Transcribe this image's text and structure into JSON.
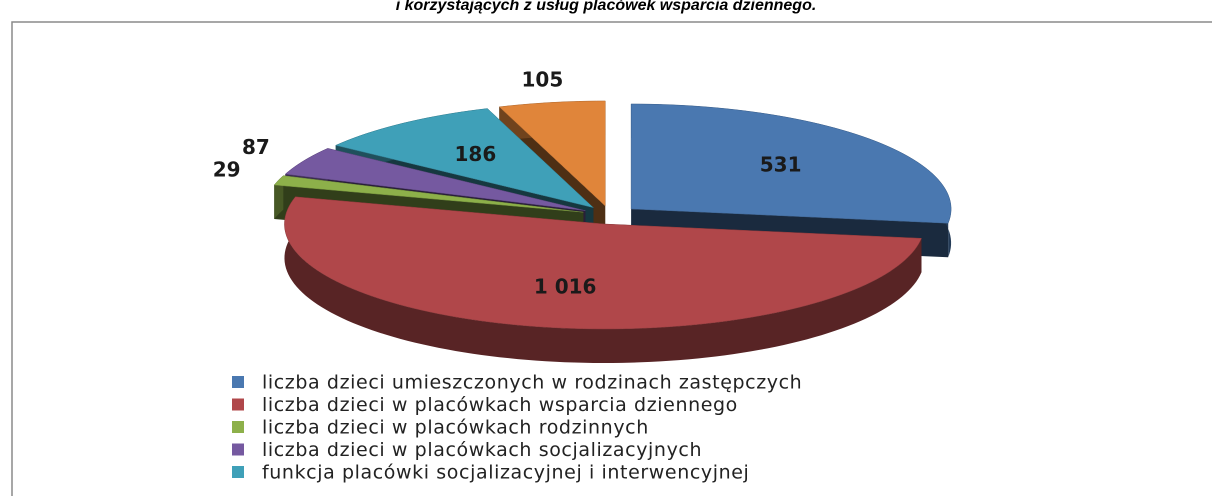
{
  "chart_data": {
    "type": "pie3d",
    "title": "i korzystających z usług placówek wsparcia dziennego.",
    "categories": [
      "liczba dzieci umieszczonych w rodzinach zastępczych",
      "liczba dzieci w placówkach wsparcia dziennego",
      "liczba dzieci w placówkach rodzinnych",
      "liczba dzieci w placówkach socjalizacyjnych",
      "funkcja placówki socjalizacyjnej i interwencyjnej",
      null
    ],
    "values": [
      531,
      1016,
      29,
      87,
      186,
      105
    ],
    "value_labels": [
      "531",
      "1 016",
      "29",
      "87",
      "186",
      "105"
    ],
    "colors": [
      "#4a78b0",
      "#b0474a",
      "#8db04a",
      "#7559a0",
      "#3fa0b8",
      "#e0853a"
    ]
  }
}
